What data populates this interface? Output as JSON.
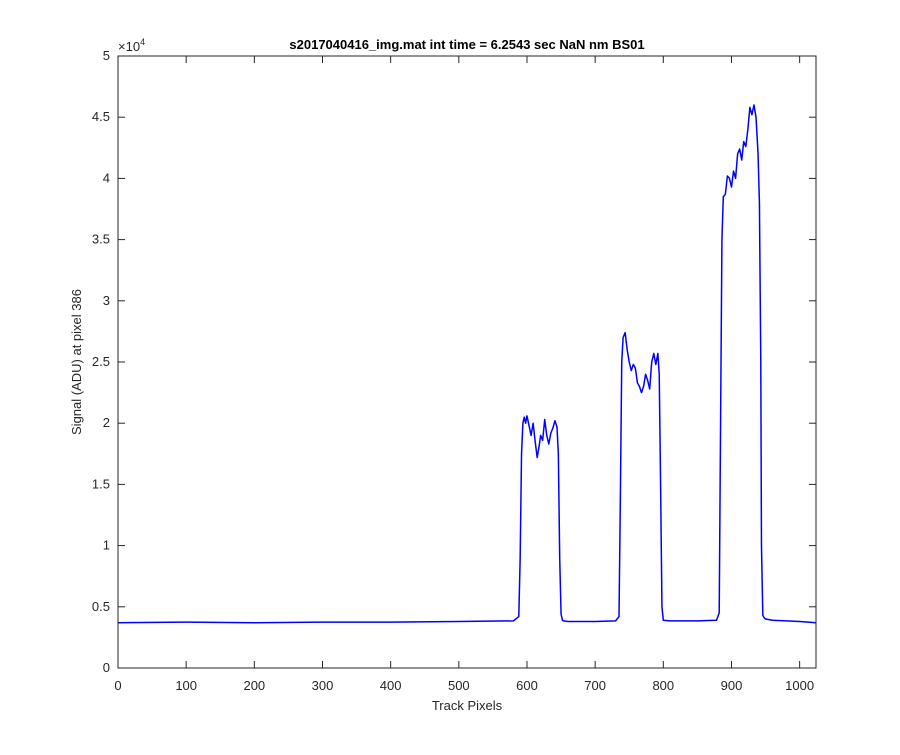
{
  "chart_data": {
    "type": "line",
    "title": "s2017040416_img.mat int time = 6.2543 sec  NaN nm BS01",
    "xlabel": "Track Pixels",
    "ylabel": "Signal (ADU) at pixel 386",
    "y_exponent_label": "×10",
    "y_exponent_power": "4",
    "xlim": [
      0,
      1024
    ],
    "ylim": [
      0,
      50000
    ],
    "x_ticks": [
      0,
      100,
      200,
      300,
      400,
      500,
      600,
      700,
      800,
      900,
      1000
    ],
    "x_tick_labels": [
      "0",
      "100",
      "200",
      "300",
      "400",
      "500",
      "600",
      "700",
      "800",
      "900",
      "1000"
    ],
    "y_ticks": [
      0,
      5000,
      10000,
      15000,
      20000,
      25000,
      30000,
      35000,
      40000,
      45000,
      50000
    ],
    "y_tick_labels": [
      "0",
      "0.5",
      "1",
      "1.5",
      "2",
      "2.5",
      "3",
      "3.5",
      "4",
      "4.5",
      "5"
    ],
    "grid": false,
    "legend": "none",
    "line_color": "#0000ff",
    "series": [
      {
        "x": [
          0,
          100,
          200,
          300,
          400,
          500,
          580,
          588,
          590,
          592,
          594,
          596,
          598,
          600,
          603,
          606,
          609,
          612,
          615,
          618,
          620,
          623,
          626,
          629,
          632,
          635,
          638,
          641,
          644,
          646,
          648,
          650,
          652,
          654,
          660,
          700,
          730,
          735,
          737,
          739,
          741,
          744,
          747,
          750,
          753,
          756,
          759,
          762,
          765,
          768,
          771,
          774,
          777,
          780,
          783,
          786,
          789,
          792,
          794,
          796,
          798,
          800,
          810,
          850,
          878,
          882,
          884,
          886,
          888,
          891,
          894,
          897,
          900,
          903,
          906,
          909,
          912,
          915,
          918,
          921,
          924,
          927,
          930,
          933,
          936,
          939,
          941,
          943,
          944,
          946,
          948,
          950,
          960,
          1000,
          1024
        ],
        "y": [
          3700,
          3750,
          3700,
          3750,
          3750,
          3800,
          3850,
          4200,
          9000,
          17500,
          20000,
          20500,
          20000,
          20600,
          19800,
          19000,
          20000,
          18500,
          17200,
          18200,
          19000,
          18600,
          20300,
          19000,
          18300,
          19200,
          19600,
          20200,
          19700,
          17500,
          9000,
          4400,
          3900,
          3850,
          3800,
          3800,
          3850,
          4200,
          14000,
          25000,
          27000,
          27400,
          26000,
          25000,
          24300,
          24800,
          24500,
          23300,
          23000,
          22500,
          23000,
          24000,
          23500,
          22800,
          25000,
          25700,
          24800,
          25700,
          24000,
          15000,
          5000,
          3900,
          3850,
          3850,
          3900,
          4500,
          20000,
          35000,
          38500,
          38700,
          40200,
          40000,
          39300,
          40600,
          40000,
          42000,
          42400,
          41500,
          43000,
          42600,
          44000,
          45800,
          45200,
          46000,
          45000,
          42000,
          38000,
          25000,
          10000,
          4300,
          4100,
          4000,
          3900,
          3800,
          3700
        ]
      }
    ]
  }
}
